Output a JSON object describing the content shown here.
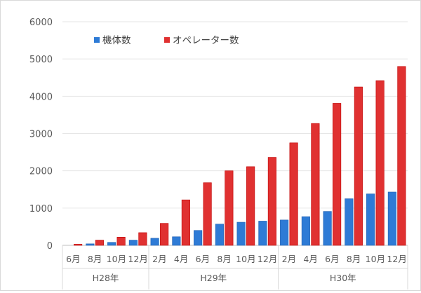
{
  "chart_data": {
    "type": "bar",
    "title": "",
    "xlabel": "",
    "ylabel": "",
    "ylim": [
      0,
      6000
    ],
    "yticks": [
      0,
      1000,
      2000,
      3000,
      4000,
      5000,
      6000
    ],
    "grid": true,
    "legend_position": "top-left",
    "categories": [
      "6月",
      "8月",
      "10月",
      "12月",
      "2月",
      "4月",
      "6月",
      "8月",
      "10月",
      "12月",
      "2月",
      "4月",
      "6月",
      "8月",
      "10月",
      "12月"
    ],
    "groups": [
      {
        "label": "H28年",
        "count": 4
      },
      {
        "label": "H29年",
        "count": 6
      },
      {
        "label": "H30年",
        "count": 6
      }
    ],
    "series": [
      {
        "name": "機体数",
        "color": "#2e7bd6",
        "values": [
          0,
          40,
          80,
          140,
          190,
          230,
          400,
          570,
          620,
          650,
          680,
          770,
          910,
          1250,
          1380,
          1430
        ]
      },
      {
        "name": "オペレーター数",
        "color": "#e03131",
        "values": [
          30,
          140,
          220,
          340,
          590,
          1220,
          1680,
          2000,
          2110,
          2360,
          2750,
          3270,
          3810,
          4250,
          4420,
          4800
        ]
      }
    ]
  }
}
